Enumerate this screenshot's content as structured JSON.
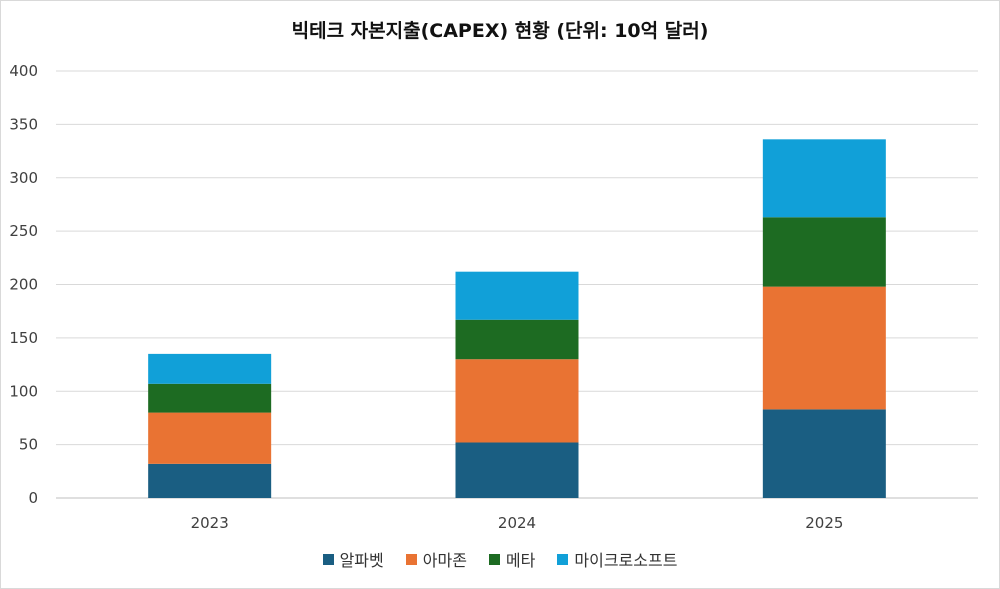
{
  "chart_data": {
    "type": "bar",
    "stacked": true,
    "title": "빅테크 자본지출(CAPEX) 현황 (단위: 10억 달러)",
    "categories": [
      "2023",
      "2024",
      "2025"
    ],
    "ylim": [
      0,
      400
    ],
    "yticks": [
      0,
      50,
      100,
      150,
      200,
      250,
      300,
      350,
      400
    ],
    "grid": true,
    "legend_position": "bottom",
    "series": [
      {
        "name": "알파벳",
        "color": "#1a5e82",
        "values": [
          32,
          52,
          83
        ]
      },
      {
        "name": "아마존",
        "color": "#e97333",
        "values": [
          48,
          78,
          115
        ]
      },
      {
        "name": "메타",
        "color": "#1d6b22",
        "values": [
          27,
          37,
          65
        ]
      },
      {
        "name": "마이크로소프트",
        "color": "#11a0d8",
        "values": [
          28,
          45,
          73
        ]
      }
    ]
  }
}
